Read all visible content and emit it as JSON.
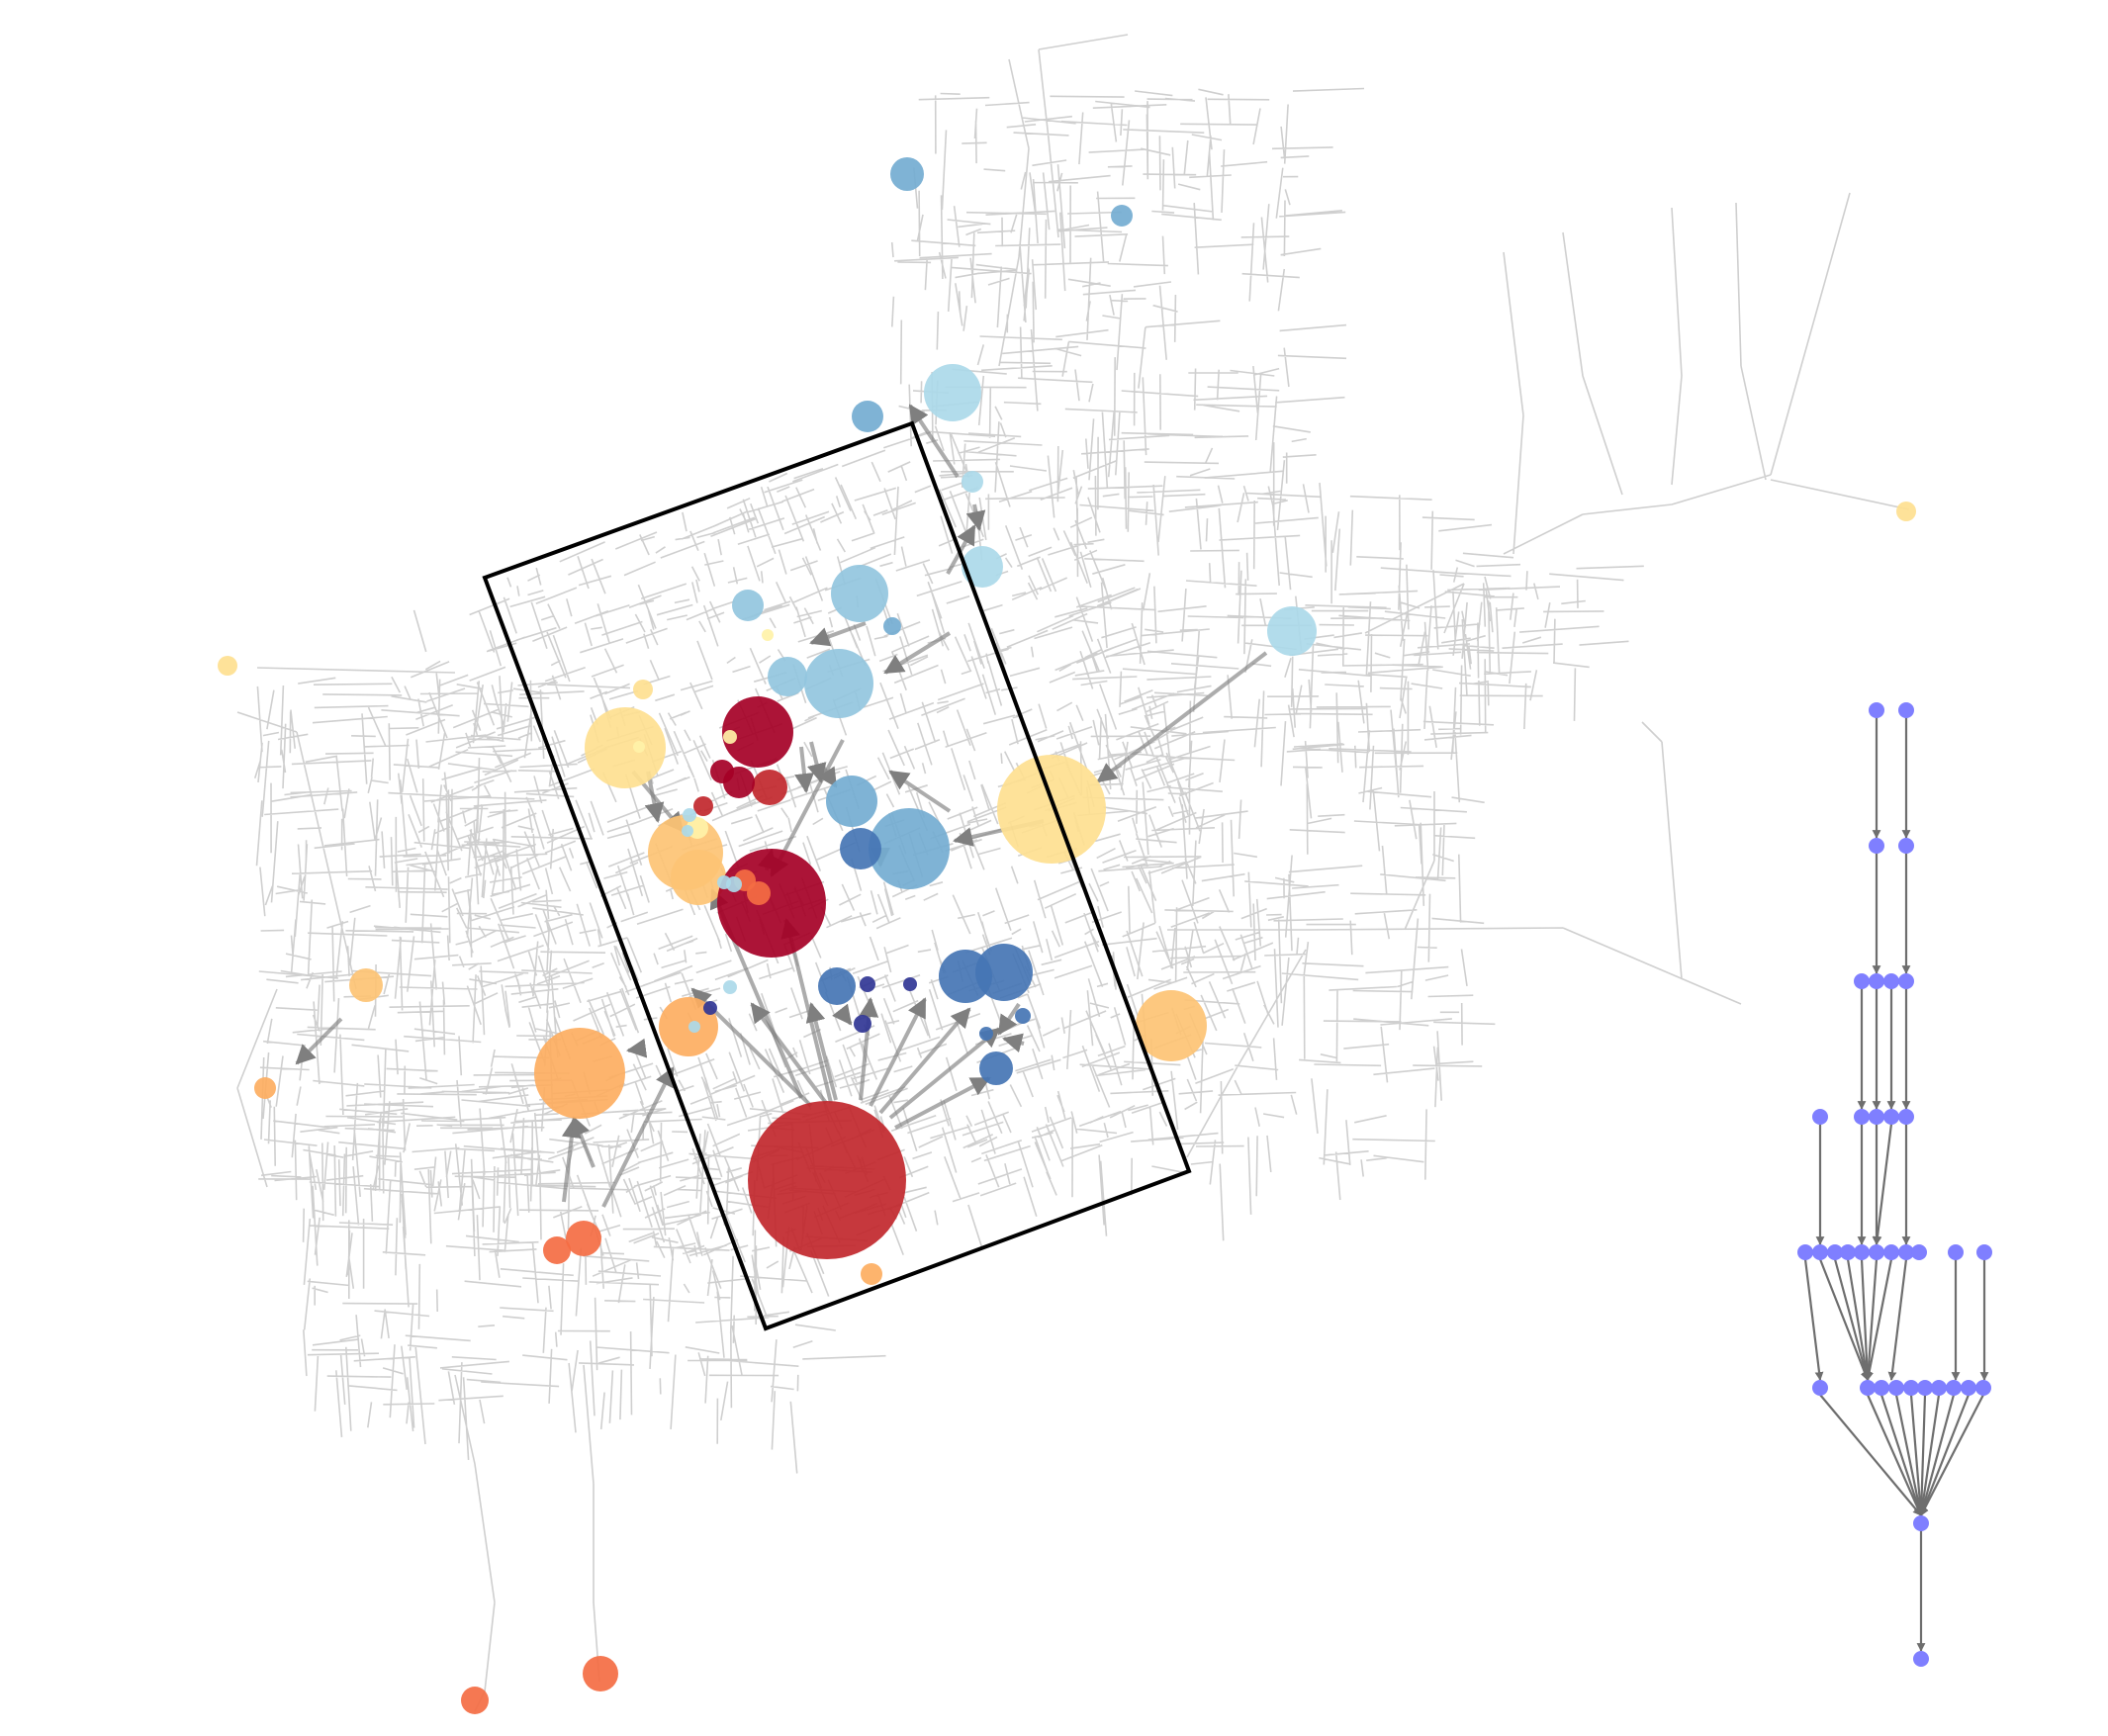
{
  "figure": {
    "background": "#ffffff",
    "street_color": "#cfcfcf",
    "flow_arrow_color": "#7f7f7f",
    "study_area_stroke": "#000000",
    "tree_node_color": "#7f7fff",
    "tree_edge_color": "#6e6e6e"
  },
  "palette": {
    "dark_red": "#a50026",
    "red": "#c1272d",
    "orange_red": "#f46d43",
    "orange": "#fdae61",
    "light_orange": "#fdc374",
    "yellow": "#fee090",
    "pale_yellow": "#fff2a8",
    "pale_blue": "#abd9e9",
    "light_blue": "#92c5de",
    "mid_blue": "#74add1",
    "blue": "#4575b4",
    "dark_blue": "#313695"
  },
  "flow_tree": {
    "levels": [
      2,
      2,
      4,
      5,
      14,
      10,
      1,
      1
    ]
  }
}
